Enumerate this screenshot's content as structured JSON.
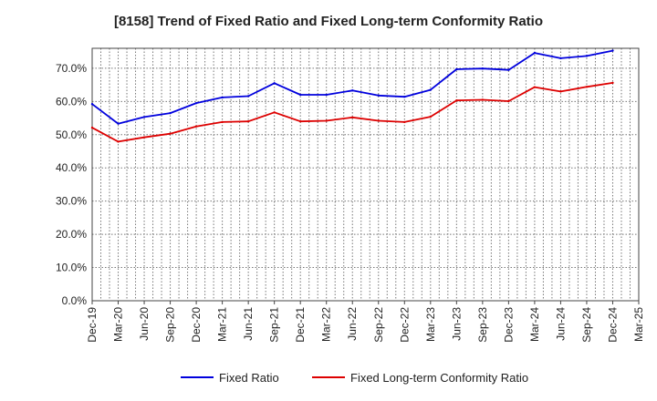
{
  "chart_data": {
    "type": "line",
    "title": "[8158]  Trend of Fixed Ratio and Fixed Long-term Conformity Ratio",
    "xlabel": "",
    "ylabel": "",
    "categories": [
      "Dec-19",
      "Mar-20",
      "Jun-20",
      "Sep-20",
      "Dec-20",
      "Mar-21",
      "Jun-21",
      "Sep-21",
      "Dec-21",
      "Mar-22",
      "Jun-22",
      "Sep-22",
      "Dec-22",
      "Mar-23",
      "Jun-23",
      "Sep-23",
      "Dec-23",
      "Mar-24",
      "Jun-24",
      "Sep-24",
      "Dec-24",
      "Mar-25"
    ],
    "y_ticks": [
      "0.0%",
      "10.0%",
      "20.0%",
      "30.0%",
      "40.0%",
      "50.0%",
      "60.0%",
      "70.0%"
    ],
    "ylim": [
      0,
      76
    ],
    "grid": true,
    "legend_position": "bottom",
    "series": [
      {
        "name": "Fixed Ratio",
        "color": "#0000dd",
        "values": [
          59.2,
          53.3,
          55.3,
          56.5,
          59.5,
          61.2,
          61.6,
          65.5,
          62.0,
          62.0,
          63.3,
          61.8,
          61.4,
          63.5,
          69.7,
          69.9,
          69.5,
          74.6,
          73.0,
          73.7,
          75.3,
          null
        ]
      },
      {
        "name": "Fixed Long-term Conformity Ratio",
        "color": "#dd0000",
        "values": [
          52.1,
          47.9,
          49.2,
          50.3,
          52.5,
          53.8,
          54.0,
          56.7,
          54.0,
          54.2,
          55.2,
          54.2,
          53.8,
          55.4,
          60.3,
          60.5,
          60.1,
          64.3,
          63.0,
          64.4,
          65.6,
          null
        ]
      }
    ]
  }
}
